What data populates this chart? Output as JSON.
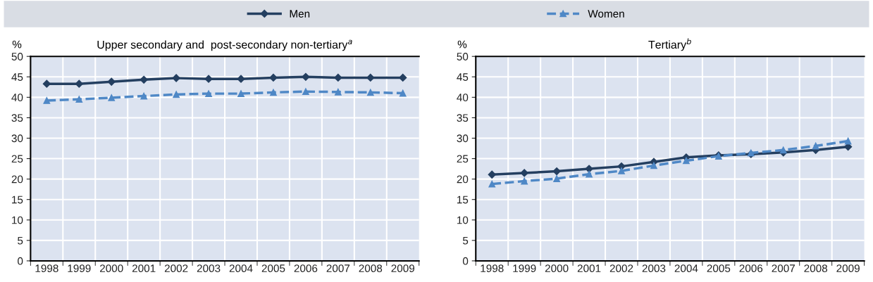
{
  "chart_data": [
    {
      "type": "line",
      "title": "Upper secondary and  post-secondary non-tertiary$^{a}$",
      "ylabel": "%",
      "categories": [
        "1998",
        "1999",
        "2000",
        "2001",
        "2002",
        "2003",
        "2004",
        "2005",
        "2006",
        "2007",
        "2008",
        "2009"
      ],
      "ylim": [
        0,
        50
      ],
      "yticks": [
        0,
        5,
        10,
        15,
        20,
        25,
        30,
        35,
        40,
        45,
        50
      ],
      "grid": true,
      "legend": "top",
      "series": [
        {
          "name": "Men",
          "color": "#243f60",
          "marker": "diamond",
          "line_style": "solid",
          "values": [
            43.3,
            43.3,
            43.8,
            44.3,
            44.7,
            44.5,
            44.5,
            44.8,
            45.0,
            44.8,
            44.8,
            44.8
          ]
        },
        {
          "name": "Women",
          "color": "#4f88c6",
          "marker": "triangle",
          "line_style": "dashed",
          "values": [
            39.2,
            39.5,
            39.9,
            40.3,
            40.7,
            40.9,
            40.9,
            41.2,
            41.4,
            41.3,
            41.2,
            41.0
          ]
        }
      ]
    },
    {
      "type": "line",
      "title": "Tertiary$^{b}$",
      "ylabel": "%",
      "categories": [
        "1998",
        "1999",
        "2000",
        "2001",
        "2002",
        "2003",
        "2004",
        "2005",
        "2006",
        "2007",
        "2008",
        "2009"
      ],
      "ylim": [
        0,
        50
      ],
      "yticks": [
        0,
        5,
        10,
        15,
        20,
        25,
        30,
        35,
        40,
        45,
        50
      ],
      "grid": true,
      "series": [
        {
          "color": "#243f60",
          "marker": "diamond",
          "line_style": "solid",
          "values": [
            21.1,
            21.5,
            21.9,
            22.5,
            23.1,
            24.2,
            25.3,
            25.8,
            26.1,
            26.5,
            27.1,
            27.9
          ]
        },
        {
          "color": "#4f88c6",
          "marker": "triangle",
          "line_style": "dashed",
          "values": [
            18.8,
            19.5,
            20.1,
            21.2,
            22.0,
            23.3,
            24.5,
            25.6,
            26.4,
            27.1,
            28.1,
            29.3
          ]
        }
      ]
    }
  ]
}
